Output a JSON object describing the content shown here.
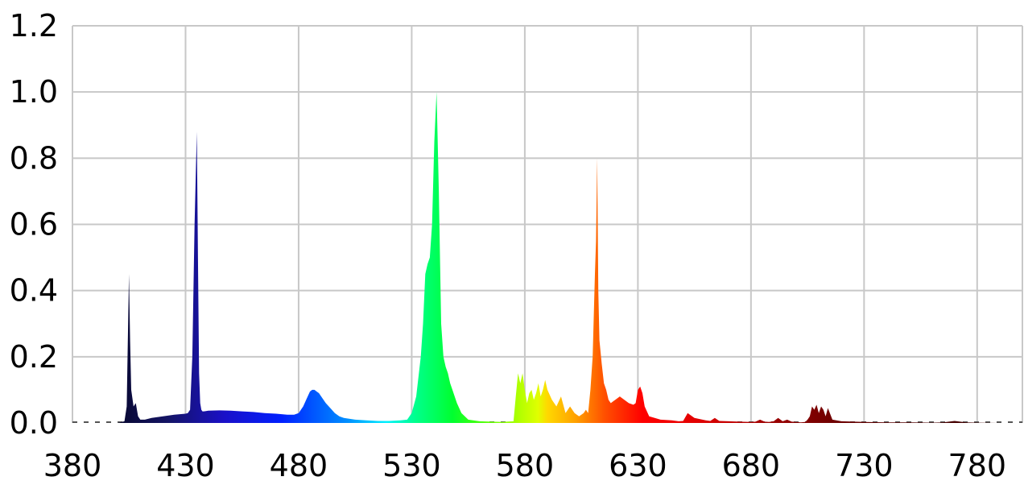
{
  "chart_data": {
    "type": "area",
    "title": "",
    "xlabel": "",
    "ylabel": "",
    "xlim": [
      380,
      800
    ],
    "ylim": [
      0,
      1.2
    ],
    "x_ticks": [
      "380",
      "430",
      "480",
      "530",
      "580",
      "630",
      "680",
      "730",
      "780"
    ],
    "y_ticks": [
      "0.0",
      "0.2",
      "0.4",
      "0.6",
      "0.8",
      "1.0",
      "1.2"
    ],
    "grid": true,
    "fill": "wavelength-colored spectrum",
    "series": [
      {
        "x": [
          380,
          400,
          403,
          404,
          404.5,
          405,
          405.5,
          406,
          407,
          408,
          409,
          410,
          412,
          415,
          420,
          425,
          430,
          431,
          432,
          433,
          434,
          435,
          435.5,
          436,
          436.5,
          437,
          437.5,
          438,
          439,
          440,
          445,
          450,
          455,
          460,
          465,
          470,
          475,
          478,
          480,
          482,
          484,
          485,
          486,
          487,
          488,
          489,
          490,
          492,
          494,
          496,
          498,
          500,
          505,
          510,
          515,
          520,
          525,
          528,
          530,
          532,
          534,
          535,
          536,
          537,
          538,
          539,
          540,
          541,
          542,
          543,
          544,
          545,
          546,
          547,
          548,
          550,
          552,
          555,
          560,
          565,
          570,
          575,
          576,
          577,
          578,
          579,
          580,
          581,
          582,
          583,
          584,
          585,
          586,
          587,
          588,
          589,
          590,
          592,
          594,
          596,
          598,
          600,
          602,
          604,
          606,
          607,
          608,
          609,
          610,
          611,
          611.5,
          612,
          612.5,
          613,
          614,
          615,
          616,
          617,
          618,
          620,
          622,
          624,
          626,
          628,
          629,
          630,
          631,
          632,
          633,
          635,
          640,
          645,
          648,
          650,
          652,
          655,
          660,
          662,
          664,
          666,
          670,
          675,
          680,
          682,
          684,
          686,
          688,
          690,
          692,
          694,
          696,
          698,
          700,
          702,
          704,
          705,
          706,
          707,
          708,
          709,
          710,
          711,
          712,
          713,
          714,
          716,
          720,
          730,
          740,
          750,
          760,
          765,
          770,
          775,
          780,
          790,
          800
        ],
        "y": [
          0,
          0,
          0.005,
          0.05,
          0.25,
          0.45,
          0.25,
          0.1,
          0.05,
          0.06,
          0.02,
          0.01,
          0.01,
          0.015,
          0.02,
          0.025,
          0.028,
          0.03,
          0.04,
          0.2,
          0.6,
          0.88,
          0.5,
          0.15,
          0.06,
          0.04,
          0.035,
          0.035,
          0.036,
          0.037,
          0.038,
          0.037,
          0.035,
          0.033,
          0.03,
          0.028,
          0.025,
          0.025,
          0.03,
          0.05,
          0.08,
          0.095,
          0.1,
          0.1,
          0.095,
          0.09,
          0.08,
          0.06,
          0.045,
          0.03,
          0.02,
          0.015,
          0.01,
          0.008,
          0.006,
          0.006,
          0.008,
          0.01,
          0.03,
          0.08,
          0.2,
          0.3,
          0.45,
          0.48,
          0.5,
          0.6,
          0.85,
          1.0,
          0.7,
          0.3,
          0.2,
          0.17,
          0.15,
          0.12,
          0.1,
          0.06,
          0.03,
          0.01,
          0.005,
          0.004,
          0.003,
          0.005,
          0.08,
          0.15,
          0.12,
          0.15,
          0.1,
          0.06,
          0.09,
          0.1,
          0.07,
          0.09,
          0.12,
          0.08,
          0.1,
          0.13,
          0.1,
          0.07,
          0.05,
          0.08,
          0.03,
          0.05,
          0.03,
          0.02,
          0.03,
          0.04,
          0.03,
          0.1,
          0.2,
          0.45,
          0.55,
          0.8,
          0.4,
          0.25,
          0.18,
          0.12,
          0.1,
          0.07,
          0.06,
          0.07,
          0.08,
          0.07,
          0.06,
          0.055,
          0.06,
          0.1,
          0.11,
          0.09,
          0.05,
          0.02,
          0.01,
          0.008,
          0.005,
          0.006,
          0.03,
          0.015,
          0.008,
          0.006,
          0.015,
          0.006,
          0.005,
          0.004,
          0.003,
          0.004,
          0.01,
          0.004,
          0.003,
          0.005,
          0.015,
          0.005,
          0.01,
          0.004,
          0.003,
          0.002,
          0.003,
          0.01,
          0.02,
          0.05,
          0.04,
          0.055,
          0.03,
          0.05,
          0.04,
          0.02,
          0.045,
          0.01,
          0.005,
          0.003,
          0.002,
          0.002,
          0.001,
          0.002,
          0.006,
          0.002,
          0.001,
          0,
          0
        ]
      }
    ]
  }
}
